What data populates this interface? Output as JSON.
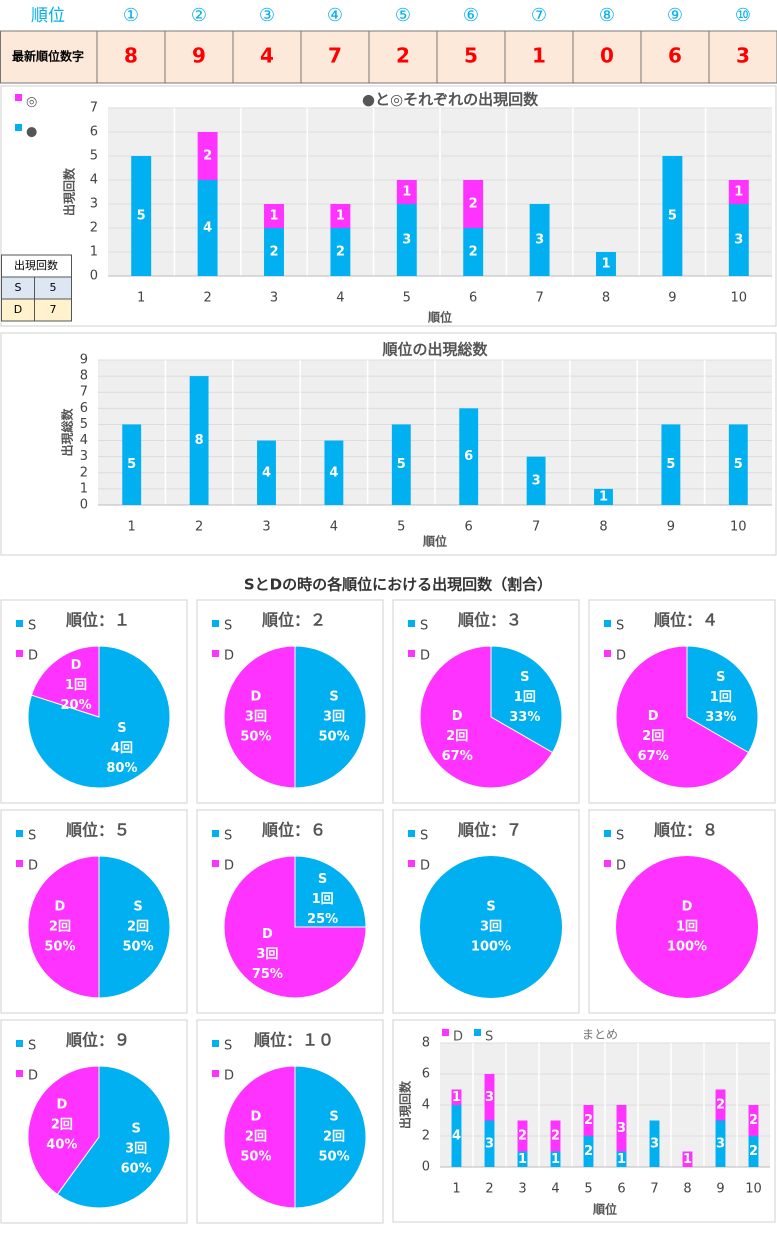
{
  "header": {
    "label": "順位",
    "positions": [
      "①",
      "②",
      "③",
      "④",
      "⑤",
      "⑥",
      "⑦",
      "⑧",
      "⑨",
      "⑩"
    ],
    "row_label": "最新順位数字",
    "digits": [
      8,
      9,
      4,
      7,
      2,
      5,
      1,
      0,
      6,
      3
    ]
  },
  "count_table": {
    "title": "出現回数",
    "rows": [
      [
        "S",
        5
      ],
      [
        "D",
        7
      ]
    ]
  },
  "section_title": "SとDの時の各順位における出現回数（割合）",
  "chart_data": [
    {
      "type": "stacked_bar",
      "title": "●と◎それぞれの出現回数",
      "x_label": "順位",
      "y_label": "出現回数",
      "categories": [
        "1",
        "2",
        "3",
        "4",
        "5",
        "6",
        "7",
        "8",
        "9",
        "10"
      ],
      "series": [
        {
          "name": "●",
          "color": "#00b0f0",
          "values": [
            5,
            4,
            2,
            2,
            3,
            2,
            3,
            1,
            5,
            3
          ]
        },
        {
          "name": "◎",
          "color": "#ff33ff",
          "values": [
            0,
            2,
            1,
            1,
            1,
            2,
            0,
            0,
            0,
            1
          ]
        }
      ],
      "ylim": [
        0,
        7
      ],
      "yticks": [
        0,
        1,
        2,
        3,
        4,
        5,
        6,
        7
      ]
    },
    {
      "type": "bar",
      "title": "順位の出現総数",
      "x_label": "順位",
      "y_label": "出現総数",
      "categories": [
        "1",
        "2",
        "3",
        "4",
        "5",
        "6",
        "7",
        "8",
        "9",
        "10"
      ],
      "color": "#00b0f0",
      "values": [
        5,
        8,
        4,
        4,
        5,
        6,
        3,
        1,
        5,
        5
      ],
      "ylim": [
        0,
        9
      ],
      "yticks": [
        0,
        1,
        2,
        3,
        4,
        5,
        6,
        7,
        8,
        9
      ]
    },
    {
      "type": "pie",
      "title": "順位：１",
      "categories": [
        "S",
        "D"
      ],
      "colors": [
        "#00b0f0",
        "#ff33ff"
      ],
      "values": [
        4,
        1
      ],
      "value_labels": [
        "4回",
        "1回"
      ],
      "percent_labels": [
        "80%",
        "20%"
      ]
    },
    {
      "type": "pie",
      "title": "順位：２",
      "categories": [
        "S",
        "D"
      ],
      "colors": [
        "#00b0f0",
        "#ff33ff"
      ],
      "values": [
        3,
        3
      ],
      "value_labels": [
        "3回",
        "3回"
      ],
      "percent_labels": [
        "50%",
        "50%"
      ]
    },
    {
      "type": "pie",
      "title": "順位：３",
      "categories": [
        "S",
        "D"
      ],
      "colors": [
        "#00b0f0",
        "#ff33ff"
      ],
      "values": [
        1,
        2
      ],
      "value_labels": [
        "1回",
        "2回"
      ],
      "percent_labels": [
        "33%",
        "67%"
      ]
    },
    {
      "type": "pie",
      "title": "順位：４",
      "categories": [
        "S",
        "D"
      ],
      "colors": [
        "#00b0f0",
        "#ff33ff"
      ],
      "values": [
        1,
        2
      ],
      "value_labels": [
        "1回",
        "2回"
      ],
      "percent_labels": [
        "33%",
        "67%"
      ]
    },
    {
      "type": "pie",
      "title": "順位：５",
      "categories": [
        "S",
        "D"
      ],
      "colors": [
        "#00b0f0",
        "#ff33ff"
      ],
      "values": [
        2,
        2
      ],
      "value_labels": [
        "2回",
        "2回"
      ],
      "percent_labels": [
        "50%",
        "50%"
      ]
    },
    {
      "type": "pie",
      "title": "順位：６",
      "categories": [
        "S",
        "D"
      ],
      "colors": [
        "#00b0f0",
        "#ff33ff"
      ],
      "values": [
        1,
        3
      ],
      "value_labels": [
        "1回",
        "3回"
      ],
      "percent_labels": [
        "25%",
        "75%"
      ]
    },
    {
      "type": "pie",
      "title": "順位：７",
      "categories": [
        "S",
        "D"
      ],
      "colors": [
        "#00b0f0",
        "#ff33ff"
      ],
      "values": [
        3,
        0
      ],
      "value_labels": [
        "3回",
        null
      ],
      "percent_labels": [
        "100%",
        null
      ]
    },
    {
      "type": "pie",
      "title": "順位：８",
      "categories": [
        "S",
        "D"
      ],
      "colors": [
        "#00b0f0",
        "#ff33ff"
      ],
      "values": [
        0,
        1
      ],
      "value_labels": [
        null,
        "1回"
      ],
      "percent_labels": [
        null,
        "100%"
      ]
    },
    {
      "type": "pie",
      "title": "順位：９",
      "categories": [
        "S",
        "D"
      ],
      "colors": [
        "#00b0f0",
        "#ff33ff"
      ],
      "values": [
        3,
        2
      ],
      "value_labels": [
        "3回",
        "2回"
      ],
      "percent_labels": [
        "60%",
        "40%"
      ]
    },
    {
      "type": "pie",
      "title": "順位：１０",
      "categories": [
        "S",
        "D"
      ],
      "colors": [
        "#00b0f0",
        "#ff33ff"
      ],
      "values": [
        2,
        2
      ],
      "value_labels": [
        "2回",
        "2回"
      ],
      "percent_labels": [
        "50%",
        "50%"
      ]
    },
    {
      "type": "stacked_bar",
      "title": "まとめ",
      "x_label": "順位",
      "y_label": "出現回数",
      "categories": [
        "1",
        "2",
        "3",
        "4",
        "5",
        "6",
        "7",
        "8",
        "9",
        "10"
      ],
      "series": [
        {
          "name": "S",
          "color": "#00b0f0",
          "values": [
            4,
            3,
            1,
            1,
            2,
            1,
            3,
            0,
            3,
            2
          ]
        },
        {
          "name": "D",
          "color": "#ff33ff",
          "values": [
            1,
            3,
            2,
            2,
            2,
            3,
            0,
            1,
            2,
            2
          ]
        }
      ],
      "ylim": [
        0,
        8
      ],
      "yticks": [
        0,
        2,
        4,
        6,
        8
      ]
    }
  ]
}
